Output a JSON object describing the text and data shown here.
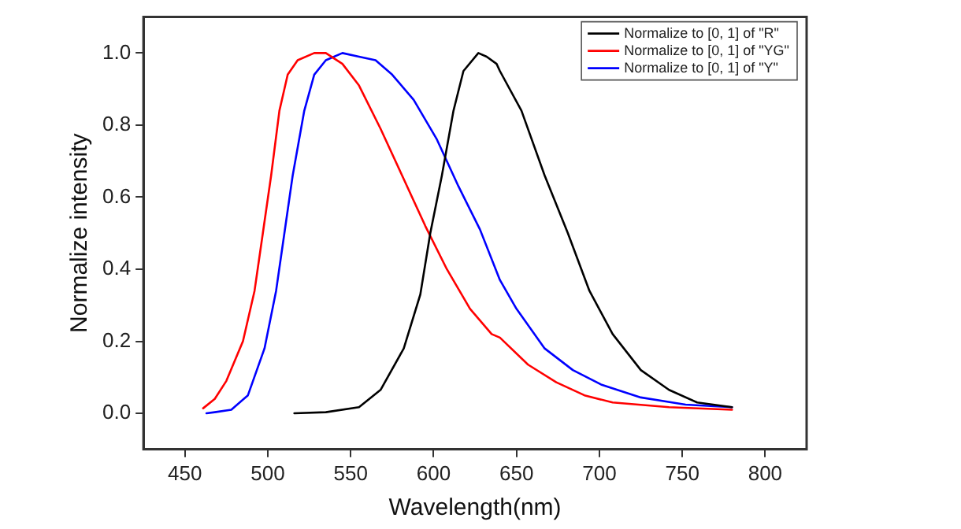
{
  "chart_data": {
    "type": "line",
    "xlabel": "Wavelength(nm)",
    "ylabel": "Normalize intensity",
    "xlim": [
      425,
      825
    ],
    "ylim": [
      -0.1,
      1.1
    ],
    "xticks": [
      450,
      500,
      550,
      600,
      650,
      700,
      750,
      800
    ],
    "yticks": [
      {
        "value": 0,
        "label": "0.0"
      },
      0.2,
      0.4,
      0.6,
      0.8,
      {
        "value": 1,
        "label": "1.0"
      }
    ],
    "grid": false,
    "legend": "top right",
    "marker": "none",
    "line_style": "solid",
    "series": [
      {
        "name": "Normalize to [0, 1] of \"R\"",
        "color": "#000000",
        "x": [
          516,
          535,
          555,
          568,
          582,
          592,
          598,
          605,
          612,
          618,
          627,
          632,
          638,
          640,
          653,
          667,
          681,
          694,
          708,
          725,
          742,
          759,
          780
        ],
        "values": [
          0,
          0.003,
          0.017,
          0.065,
          0.18,
          0.33,
          0.5,
          0.66,
          0.84,
          0.95,
          1.0,
          0.99,
          0.97,
          0.95,
          0.84,
          0.66,
          0.5,
          0.34,
          0.22,
          0.12,
          0.065,
          0.03,
          0.017
        ]
      },
      {
        "name": "Normalize to [0, 1] of \"YG\"",
        "color": "#ff0000",
        "x": [
          461,
          468,
          475,
          485,
          492,
          497,
          502,
          507,
          512,
          518,
          528,
          535,
          545,
          555,
          568,
          582,
          595,
          608,
          622,
          635,
          640,
          657,
          674,
          691,
          708,
          742,
          780
        ],
        "values": [
          0.014,
          0.04,
          0.09,
          0.2,
          0.34,
          0.5,
          0.66,
          0.84,
          0.94,
          0.98,
          1.0,
          1.0,
          0.97,
          0.91,
          0.79,
          0.65,
          0.52,
          0.4,
          0.29,
          0.22,
          0.21,
          0.135,
          0.086,
          0.05,
          0.03,
          0.017,
          0.01
        ]
      },
      {
        "name": "Normalize to [0, 1] of \"Y\"",
        "color": "#0000ff",
        "x": [
          463,
          468,
          478,
          488,
          498,
          505,
          510,
          515,
          522,
          528,
          535,
          545,
          555,
          565,
          575,
          588,
          602,
          615,
          628,
          640,
          650,
          667,
          684,
          701,
          725,
          752,
          780
        ],
        "values": [
          0,
          0.003,
          0.01,
          0.05,
          0.18,
          0.34,
          0.5,
          0.66,
          0.84,
          0.94,
          0.98,
          1.0,
          0.99,
          0.98,
          0.94,
          0.87,
          0.76,
          0.63,
          0.51,
          0.37,
          0.29,
          0.18,
          0.12,
          0.08,
          0.044,
          0.024,
          0.017
        ]
      }
    ]
  }
}
